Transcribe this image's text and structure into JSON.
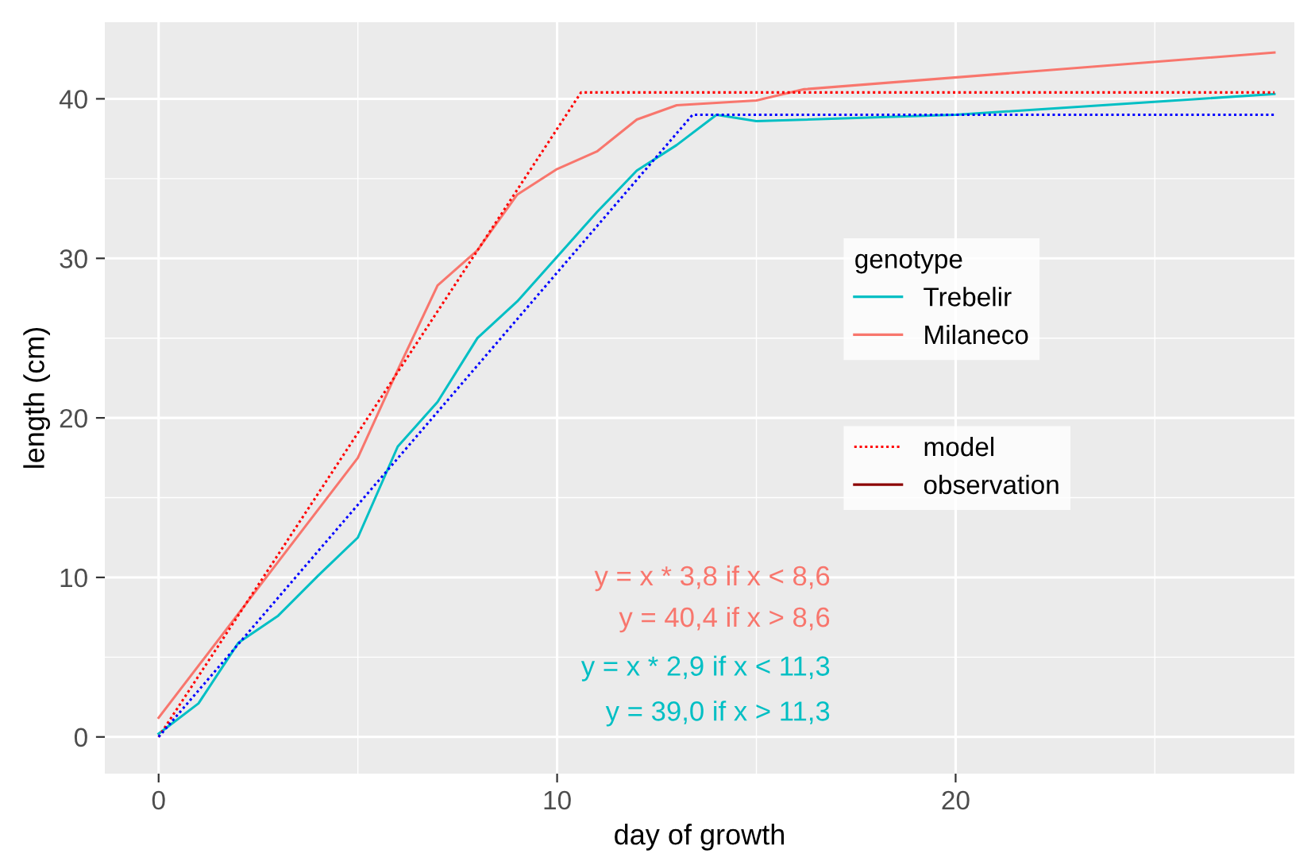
{
  "chart_data": {
    "type": "line",
    "xlabel": "day of growth",
    "ylabel": "length (cm)",
    "legend_title": "genotype",
    "xlim": [
      -1.35,
      28.5
    ],
    "ylim": [
      -2.3,
      44.8
    ],
    "xticks": [
      0,
      10,
      20
    ],
    "yticks": [
      0,
      10,
      20,
      30,
      40
    ],
    "grid": true,
    "legend": "right",
    "series": [
      {
        "name": "Trebelir",
        "color": "#00bfc4",
        "line_style": "solid",
        "x": [
          0,
          1,
          2,
          3,
          4,
          5,
          6,
          7,
          8,
          9,
          10,
          11,
          12,
          13,
          14,
          15,
          20,
          28
        ],
        "values": [
          0.2,
          2.1,
          5.9,
          7.6,
          10.1,
          12.5,
          18.2,
          21.0,
          25.0,
          27.3,
          30.1,
          32.9,
          35.5,
          37.1,
          39.0,
          38.6,
          39.0,
          40.3
        ]
      },
      {
        "name": "Milaneco",
        "color": "#f8766d",
        "line_style": "solid",
        "x": [
          0,
          5,
          6,
          7,
          8,
          9,
          10,
          11,
          12,
          13,
          15,
          16.2,
          28
        ],
        "values": [
          1.2,
          17.5,
          23.0,
          28.3,
          30.5,
          34.0,
          35.6,
          36.7,
          38.7,
          39.6,
          39.9,
          40.6,
          42.9
        ]
      },
      {
        "name": "model",
        "color": "#ff0000",
        "line_style": "dotted",
        "x": [
          0,
          10.6,
          28
        ],
        "values": [
          0,
          40.4,
          40.4
        ]
      },
      {
        "color": "#0000ff",
        "line_style": "dotted",
        "x": [
          0,
          13.4,
          28
        ],
        "values": [
          0,
          39.0,
          39.0
        ]
      },
      {
        "name": "observation",
        "color": "#8b0000",
        "line_style": "solid"
      }
    ],
    "annotations": [
      "y = x * 3,8 if x < 8,6",
      "y = 40,4 if x > 8,6",
      "y = x * 2,9 if x < 11,3",
      "y = 39,0 if x > 11,3"
    ]
  }
}
